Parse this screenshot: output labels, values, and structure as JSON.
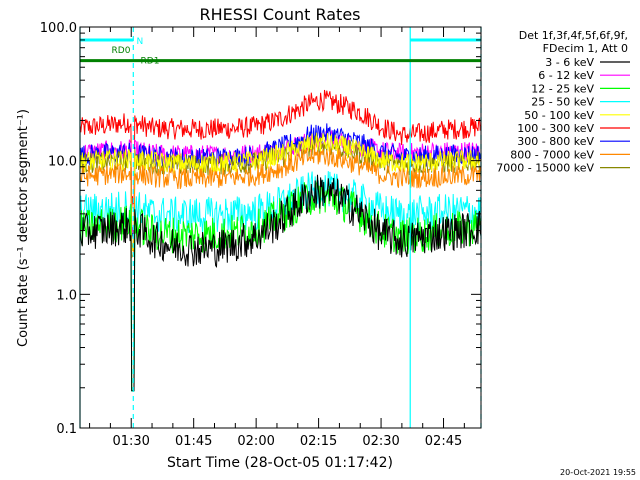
{
  "chart_data": {
    "type": "line",
    "title": "RHESSI Count Rates",
    "xlabel": "Start Time (28-Oct-05 01:17:42)",
    "ylabel": "Count Rate (s⁻¹ detector segment⁻¹)",
    "y_scale": "log",
    "ylim": [
      0.1,
      100.0
    ],
    "xlim_minutes": [
      77.7,
      174
    ],
    "y_ticks": [
      {
        "value": 0.1,
        "label": "0.1"
      },
      {
        "value": 1.0,
        "label": "1.0"
      },
      {
        "value": 10.0,
        "label": "10.0"
      },
      {
        "value": 100.0,
        "label": "100.0"
      }
    ],
    "x_ticks": [
      {
        "minutes": 90,
        "label": "01:30"
      },
      {
        "minutes": 105,
        "label": "01:45"
      },
      {
        "minutes": 120,
        "label": "02:00"
      },
      {
        "minutes": 135,
        "label": "02:15"
      },
      {
        "minutes": 150,
        "label": "02:30"
      },
      {
        "minutes": 165,
        "label": "02:45"
      }
    ],
    "legend": {
      "position": "right",
      "header": [
        "Det 1f,3f,4f,5f,6f,9f,",
        "FDecim 1, Att 0"
      ],
      "entries": [
        {
          "label": "3 - 6 keV",
          "color": "#000000"
        },
        {
          "label": "6 - 12 keV",
          "color": "#ff00ff"
        },
        {
          "label": "12 - 25 keV",
          "color": "#00ff00"
        },
        {
          "label": "25 - 50 keV",
          "color": "#00ffff"
        },
        {
          "label": "50 - 100 keV",
          "color": "#ffff00"
        },
        {
          "label": "100 - 300 keV",
          "color": "#ff0000"
        },
        {
          "label": "300 - 800 keV",
          "color": "#0000ff"
        },
        {
          "label": "800 - 7000 keV",
          "color": "#ff8800"
        },
        {
          "label": "7000 - 15000 keV",
          "color": "#888800"
        }
      ]
    },
    "series": [
      {
        "color": "#ff0000",
        "x": [
          77.7,
          85,
          90,
          95,
          100,
          105,
          110,
          115,
          120,
          125,
          130,
          133,
          136,
          140,
          145,
          150,
          155,
          160,
          165,
          170,
          174
        ],
        "values": [
          17.5,
          18.5,
          19.5,
          17.5,
          17.3,
          17.2,
          17.3,
          17.4,
          18,
          20,
          24,
          27,
          28.5,
          26.5,
          23,
          18,
          15.5,
          16,
          17,
          17.5,
          18
        ]
      },
      {
        "color": "#ff00ff",
        "x": [
          77.7,
          85,
          90,
          95,
          100,
          105,
          110,
          115,
          120,
          125,
          130,
          133,
          136,
          140,
          145,
          150,
          155,
          160,
          165,
          170,
          174
        ],
        "values": [
          11.5,
          11.8,
          12,
          11.2,
          11.1,
          11,
          11,
          11.1,
          11.3,
          12,
          13,
          13.8,
          14.2,
          13.8,
          12.8,
          11.7,
          11.3,
          11.5,
          11.6,
          11.7,
          11.8
        ]
      },
      {
        "color": "#0000ff",
        "x": [
          77.7,
          85,
          90,
          95,
          100,
          105,
          110,
          115,
          120,
          125,
          130,
          133,
          136,
          140,
          145,
          150,
          155,
          160,
          165,
          170,
          174
        ],
        "values": [
          11,
          11.3,
          11.5,
          10.8,
          10.5,
          10.4,
          10.5,
          10.6,
          11,
          12.2,
          14,
          15.5,
          16,
          15.2,
          13.5,
          11.5,
          10.7,
          10.8,
          11,
          11.1,
          11.2
        ]
      },
      {
        "color": "#888800",
        "x": [
          77.7,
          85,
          90,
          95,
          100,
          105,
          110,
          115,
          120,
          125,
          130,
          133,
          136,
          140,
          145,
          150,
          155,
          160,
          165,
          170,
          174
        ],
        "values": [
          9.5,
          9.8,
          10,
          9.5,
          9.3,
          9.2,
          9.3,
          9.4,
          9.7,
          10.5,
          11.8,
          12.8,
          13.2,
          12.5,
          11.2,
          9.8,
          9.3,
          9.4,
          9.6,
          9.7,
          9.8
        ]
      },
      {
        "color": "#ffff00",
        "x": [
          77.7,
          85,
          90,
          95,
          100,
          105,
          110,
          115,
          120,
          125,
          130,
          133,
          136,
          140,
          145,
          150,
          155,
          160,
          165,
          170,
          174
        ],
        "values": [
          9.8,
          10.1,
          10.3,
          9.8,
          9.6,
          9.5,
          9.6,
          9.7,
          10,
          10.9,
          12.2,
          13.3,
          13.7,
          13,
          11.6,
          10.1,
          9.6,
          9.7,
          9.9,
          10,
          10.1
        ]
      },
      {
        "color": "#ff8800",
        "x": [
          77.7,
          85,
          90,
          95,
          100,
          105,
          110,
          115,
          120,
          125,
          130,
          133,
          136,
          140,
          145,
          150,
          155,
          160,
          165,
          170,
          174
        ],
        "values": [
          7.6,
          7.9,
          8.1,
          7.6,
          7.4,
          7.3,
          7.4,
          7.5,
          7.8,
          8.6,
          9.8,
          10.7,
          11,
          10.4,
          9.2,
          7.9,
          7.4,
          7.5,
          7.6,
          7.7,
          7.8
        ]
      },
      {
        "color": "#00ffff",
        "x": [
          77.7,
          85,
          90,
          95,
          100,
          105,
          110,
          115,
          120,
          125,
          130,
          133,
          136,
          140,
          145,
          150,
          155,
          160,
          165,
          170,
          174
        ],
        "values": [
          4.1,
          4.3,
          4.5,
          4,
          3.9,
          3.9,
          3.9,
          4,
          4.1,
          4.6,
          5.4,
          6,
          6.2,
          5.8,
          5,
          4.2,
          3.9,
          4,
          4.1,
          4.2,
          4.2
        ]
      },
      {
        "color": "#00ff00",
        "x": [
          77.7,
          85,
          90,
          95,
          100,
          105,
          110,
          115,
          120,
          125,
          130,
          133,
          136,
          140,
          145,
          150,
          155,
          160,
          165,
          170,
          174
        ],
        "values": [
          3.1,
          3.3,
          3.5,
          2.9,
          2.8,
          2.8,
          2.8,
          2.9,
          3.1,
          3.7,
          4.7,
          5.3,
          5.5,
          5,
          4,
          3,
          2.7,
          2.8,
          3,
          3.1,
          3.2
        ]
      },
      {
        "color": "#000000",
        "x": [
          77.7,
          85,
          90,
          95,
          100,
          105,
          110,
          115,
          120,
          125,
          130,
          133,
          136,
          140,
          145,
          150,
          155,
          160,
          165,
          170,
          174
        ],
        "values": [
          2.9,
          3.1,
          3.3,
          2.6,
          2.3,
          2.2,
          2.2,
          2.4,
          2.7,
          3.4,
          4.7,
          5.6,
          6,
          5.3,
          4,
          2.8,
          2.5,
          2.7,
          2.9,
          3,
          3.2
        ]
      }
    ],
    "markers": [
      {
        "label": "N",
        "color": "#00ffff",
        "segments": [
          [
            77.7,
            90.5
          ],
          [
            157,
            174
          ]
        ],
        "y": 80
      },
      {
        "label": "RD0",
        "color": "#008000",
        "y": 67
      },
      {
        "label": "RD1",
        "color": "#008000",
        "segments": [
          [
            77.7,
            174
          ]
        ],
        "y": 56
      }
    ],
    "vertical_lines": [
      {
        "minutes": 77.7,
        "color": "#00ffff",
        "style": "solid"
      },
      {
        "minutes": 90.5,
        "color": "#00ffff",
        "style": "dashed"
      },
      {
        "minutes": 157,
        "color": "#00ffff",
        "style": "solid"
      },
      {
        "minutes": 174,
        "color": "#00ffff",
        "style": "dashed"
      }
    ],
    "dropout": {
      "minutes": 90.4,
      "min_value": 0.19
    }
  },
  "footer": {
    "timestamp": "20-Oct-2021 19:55"
  }
}
